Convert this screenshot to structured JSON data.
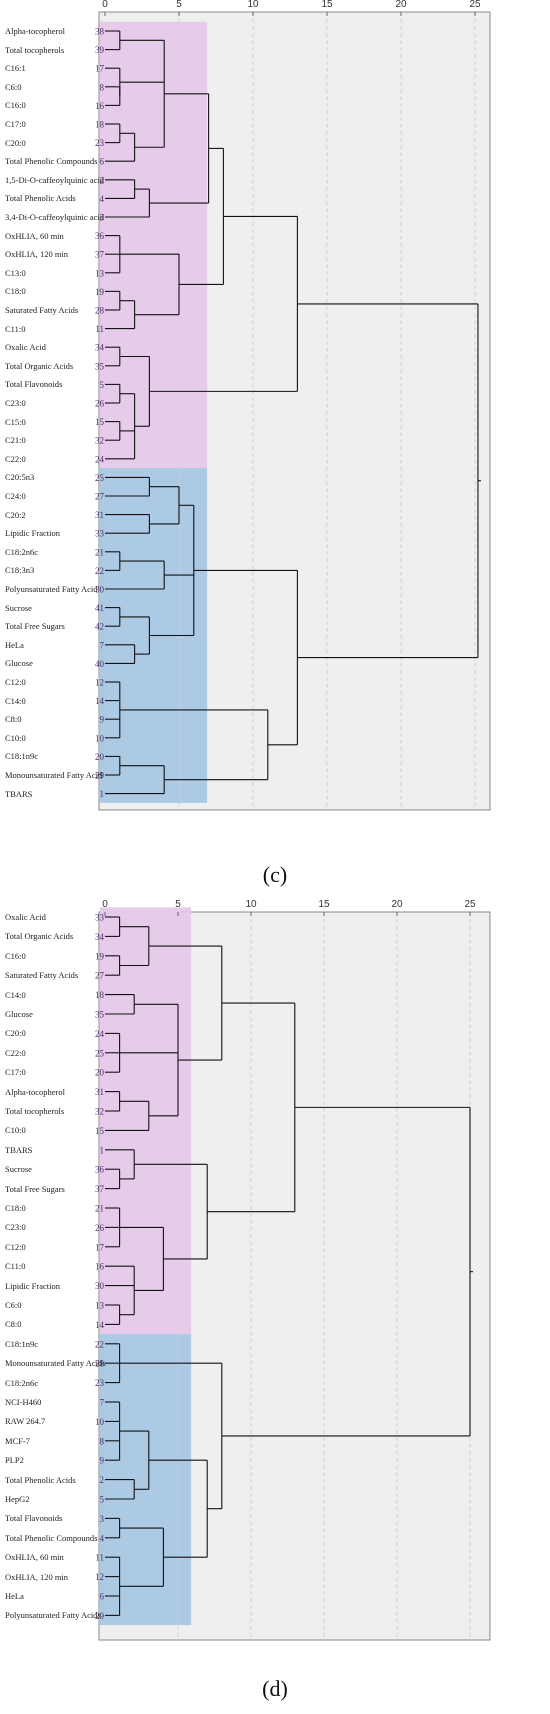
{
  "colors": {
    "plot_background": "#efefef",
    "cluster_pink": "#e6c8ea",
    "cluster_blue": "#a9c7e4",
    "grid": "#d0d0d0",
    "line": "#111111"
  },
  "panel_c": {
    "caption": "(c)",
    "axis_ticks": [
      "0",
      "5",
      "10",
      "15",
      "20",
      "25"
    ],
    "rows": [
      {
        "label": "Alpha-tocopherol",
        "case": "38"
      },
      {
        "label": "Total tocopherols",
        "case": "39"
      },
      {
        "label": "C16:1",
        "case": "17"
      },
      {
        "label": "C6:0",
        "case": "8"
      },
      {
        "label": "C16:0",
        "case": "16"
      },
      {
        "label": "C17:0",
        "case": "18"
      },
      {
        "label": "C20:0",
        "case": "23"
      },
      {
        "label": "Total Phenolic Compounds",
        "case": "6"
      },
      {
        "label": "1,5-Di-O-caffeoylquinic acid",
        "case": "2"
      },
      {
        "label": "Total Phenolic Acids",
        "case": "4"
      },
      {
        "label": "3,4-Di-O-caffeoylquinic acid",
        "case": "3"
      },
      {
        "label": "OxHLIA, 60 min",
        "case": "36"
      },
      {
        "label": "OxHLIA, 120 min",
        "case": "37"
      },
      {
        "label": "C13:0",
        "case": "13"
      },
      {
        "label": "C18:0",
        "case": "19"
      },
      {
        "label": "Saturated Fatty Acids",
        "case": "28"
      },
      {
        "label": "C11:0",
        "case": "11"
      },
      {
        "label": "Oxalic Acid",
        "case": "34"
      },
      {
        "label": "Total Organic Acids",
        "case": "35"
      },
      {
        "label": "Total Flavonoids",
        "case": "5"
      },
      {
        "label": "C23:0",
        "case": "26"
      },
      {
        "label": "C15:0",
        "case": "15"
      },
      {
        "label": "C21:0",
        "case": "32"
      },
      {
        "label": "C22:0",
        "case": "24"
      },
      {
        "label": "C20:5n3",
        "case": "25"
      },
      {
        "label": "C24:0",
        "case": "27"
      },
      {
        "label": "C20:2",
        "case": "31"
      },
      {
        "label": "Lipidic Fraction",
        "case": "33"
      },
      {
        "label": "C18:2n6c",
        "case": "21"
      },
      {
        "label": "C18:3n3",
        "case": "22"
      },
      {
        "label": "Polyunsaturated Fatty Acid",
        "case": "30"
      },
      {
        "label": "Sucrose",
        "case": "41"
      },
      {
        "label": "Total Free Sugars",
        "case": "42"
      },
      {
        "label": "HeLa",
        "case": "7"
      },
      {
        "label": "Glucose",
        "case": "40"
      },
      {
        "label": "C12:0",
        "case": "12"
      },
      {
        "label": "C14:0",
        "case": "14"
      },
      {
        "label": "C8:0",
        "case": "9"
      },
      {
        "label": "C10:0",
        "case": "10"
      },
      {
        "label": "C18:1n9c",
        "case": "20"
      },
      {
        "label": "Monounsaturated Fatty Acid",
        "case": "29"
      },
      {
        "label": "TBARS",
        "case": "1"
      }
    ]
  },
  "panel_d": {
    "caption": "(d)",
    "axis_ticks": [
      "0",
      "5",
      "10",
      "15",
      "20",
      "25"
    ],
    "rows": [
      {
        "label": "Oxalic Acid",
        "case": "33"
      },
      {
        "label": "Total Organic Acids",
        "case": "34"
      },
      {
        "label": "C16:0",
        "case": "19"
      },
      {
        "label": "Saturated Fatty Acids",
        "case": "27"
      },
      {
        "label": "C14:0",
        "case": "18"
      },
      {
        "label": "Glucose",
        "case": "35"
      },
      {
        "label": "C20:0",
        "case": "24"
      },
      {
        "label": "C22:0",
        "case": "25"
      },
      {
        "label": "C17:0",
        "case": "20"
      },
      {
        "label": "Alpha-tocopherol",
        "case": "31"
      },
      {
        "label": "Total tocopherols",
        "case": "32"
      },
      {
        "label": "C10:0",
        "case": "15"
      },
      {
        "label": "TBARS",
        "case": "1"
      },
      {
        "label": "Sucrose",
        "case": "36"
      },
      {
        "label": "Total Free Sugars",
        "case": "37"
      },
      {
        "label": "C18:0",
        "case": "21"
      },
      {
        "label": "C23:0",
        "case": "26"
      },
      {
        "label": "C12:0",
        "case": "17"
      },
      {
        "label": "C11:0",
        "case": "16"
      },
      {
        "label": "Lipidic Fraction",
        "case": "30"
      },
      {
        "label": "C6:0",
        "case": "13"
      },
      {
        "label": "C8:0",
        "case": "14"
      },
      {
        "label": "C18:1n9c",
        "case": "22"
      },
      {
        "label": "Monounsaturated Fatty Acids",
        "case": "28"
      },
      {
        "label": "C18:2n6c",
        "case": "23"
      },
      {
        "label": "NCI-H460",
        "case": "7"
      },
      {
        "label": "RAW 264.7",
        "case": "10"
      },
      {
        "label": "MCF-7",
        "case": "8"
      },
      {
        "label": "PLP2",
        "case": "9"
      },
      {
        "label": "Total Phenolic Acids",
        "case": "2"
      },
      {
        "label": "HepG2",
        "case": "5"
      },
      {
        "label": "Total Flavonoids",
        "case": "3"
      },
      {
        "label": "Total Phenolic Compounds",
        "case": "4"
      },
      {
        "label": "OxHLIA, 60 min",
        "case": "11"
      },
      {
        "label": "OxHLIA, 120 min",
        "case": "12"
      },
      {
        "label": "HeLa",
        "case": "6"
      },
      {
        "label": "Polyunsaturated Fatty Acids",
        "case": "29"
      }
    ]
  }
}
